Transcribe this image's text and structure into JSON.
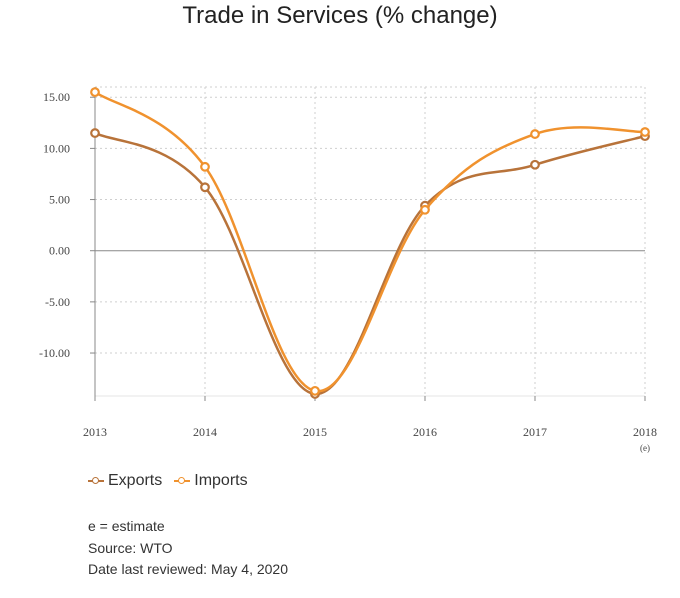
{
  "chart_data": {
    "type": "line",
    "title": "Trade in Services (% change)",
    "categories": [
      "2013",
      "2014",
      "2015",
      "2016",
      "2017",
      "2018"
    ],
    "category_sublabels": [
      "",
      "",
      "",
      "",
      "",
      "(e)"
    ],
    "y_ticks": [
      "15.00",
      "10.00",
      "5.00",
      "0.00",
      "-5.00",
      "-10.00"
    ],
    "ylim": [
      -14.2,
      16
    ],
    "grid": true,
    "legend_position": "bottom-left",
    "series": [
      {
        "name": "Exports",
        "color": "#B8733A",
        "values": [
          11.5,
          6.2,
          -14.0,
          4.4,
          8.4,
          11.2
        ]
      },
      {
        "name": "Imports",
        "color": "#F0922E",
        "values": [
          15.5,
          8.2,
          -13.7,
          4.0,
          11.4,
          11.6
        ]
      }
    ]
  },
  "notes": {
    "estimate": "e = estimate",
    "source": "Source: WTO",
    "reviewed": "Date last reviewed: May 4, 2020"
  }
}
